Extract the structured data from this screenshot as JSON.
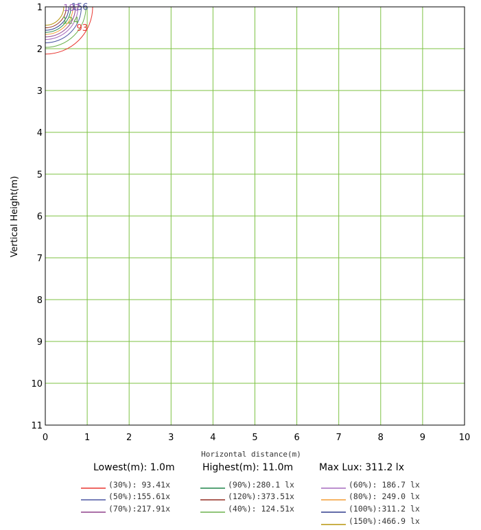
{
  "chart_data": {
    "type": "line",
    "xlabel": "Horizontal distance(m)",
    "ylabel": "Vertical Height(m)",
    "xlim": [
      0,
      10
    ],
    "ylim": [
      1,
      11
    ],
    "y_inverted": true,
    "x_ticks": [
      "0",
      "1",
      "2",
      "3",
      "4",
      "5",
      "6",
      "7",
      "8",
      "9",
      "10"
    ],
    "y_ticks": [
      "1",
      "2",
      "3",
      "4",
      "5",
      "6",
      "7",
      "8",
      "9",
      "10",
      "11"
    ],
    "grid": true,
    "colors": {
      "grid": "#7cc242",
      "frame": "#000000"
    },
    "stats": {
      "lowest": "Lowest(m): 1.0m",
      "highest": "Highest(m): 11.0m",
      "max_lux": "Max Lux: 311.2 lx"
    },
    "series": [
      {
        "name": "(30%): 93.41x",
        "color": "#e8352f",
        "label": "93",
        "radius": 1.13,
        "label_at": [
          0.88,
          1.57
        ]
      },
      {
        "name": "(40%): 124.51x",
        "color": "#6ab04c",
        "label": "124",
        "radius": 0.97,
        "label_at": [
          0.6,
          1.4
        ]
      },
      {
        "name": "(50%):155.61x",
        "color": "#4a55a2",
        "label": "156",
        "radius": 0.86,
        "label_at": [
          0.82,
          1.07
        ]
      },
      {
        "name": "(60%): 186.7 lx",
        "color": "#a569bd",
        "label": "187",
        "radius": 0.78,
        "label_at": [
          0.63,
          1.1
        ]
      },
      {
        "name": "(70%):217.91x",
        "color": "#8e3e8a",
        "label": "",
        "radius": 0.72,
        "label_at": null
      },
      {
        "name": "(80%): 249.0 lx",
        "color": "#f39c33",
        "label": "",
        "radius": 0.66,
        "label_at": null
      },
      {
        "name": "(90%):280.1 lx",
        "color": "#1e8449",
        "label": "",
        "radius": 0.61,
        "label_at": null
      },
      {
        "name": "(100%):311.2 lx",
        "color": "#2e3a8c",
        "label": "",
        "radius": 0.56,
        "label_at": null
      },
      {
        "name": "(120%):373.51x",
        "color": "#922b21",
        "label": "",
        "radius": 0.5,
        "label_at": null
      },
      {
        "name": "(150%):466.9 lx",
        "color": "#b7950b",
        "label": "",
        "radius": 0.44,
        "label_at": null
      }
    ],
    "legend_layout": "grid-below",
    "legend": [
      {
        "text": "(30%): 93.41x",
        "color": "#e8352f"
      },
      {
        "text": "(90%):280.1 lx",
        "color": "#1e8449"
      },
      {
        "text": "(60%): 186.7 lx",
        "color": "#a569bd"
      },
      {
        "text": "(50%):155.61x",
        "color": "#4a55a2"
      },
      {
        "text": "(120%):373.51x",
        "color": "#922b21"
      },
      {
        "text": "(80%): 249.0 lx",
        "color": "#f39c33"
      },
      {
        "text": "(70%):217.91x",
        "color": "#8e3e8a"
      },
      {
        "text": "(40%): 124.51x",
        "color": "#6ab04c"
      },
      {
        "text": "(100%):311.2 lx",
        "color": "#2e3a8c"
      },
      {
        "text": "(150%):466.9 lx",
        "color": "#b7950b"
      }
    ]
  }
}
